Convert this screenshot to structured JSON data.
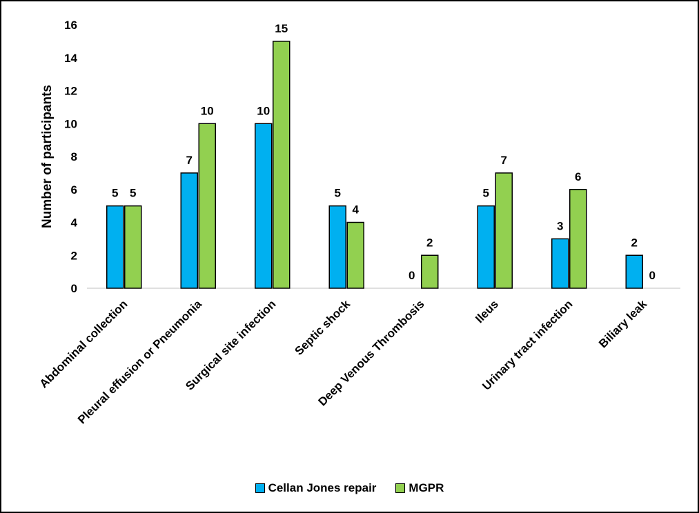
{
  "chart_data": {
    "type": "bar",
    "title": "",
    "xlabel": "",
    "ylabel": "Number of participants",
    "ylim": [
      0,
      16
    ],
    "yticks": [
      0,
      2,
      4,
      6,
      8,
      10,
      12,
      14,
      16
    ],
    "grid": false,
    "legend_position": "bottom",
    "categories": [
      "Abdominal collection",
      "Pleural effusion or Pneumonia",
      "Surgical site infection",
      "Septic shock",
      "Deep Venous Thrombosis",
      "Ileus",
      "Urinary tract infection",
      "Biliary leak"
    ],
    "series": [
      {
        "name": "Cellan Jones repair",
        "color": "#00b0f0",
        "values": [
          5,
          7,
          10,
          5,
          0,
          5,
          3,
          2
        ]
      },
      {
        "name": "MGPR",
        "color": "#92d050",
        "values": [
          5,
          10,
          15,
          4,
          2,
          7,
          6,
          0
        ]
      }
    ]
  }
}
